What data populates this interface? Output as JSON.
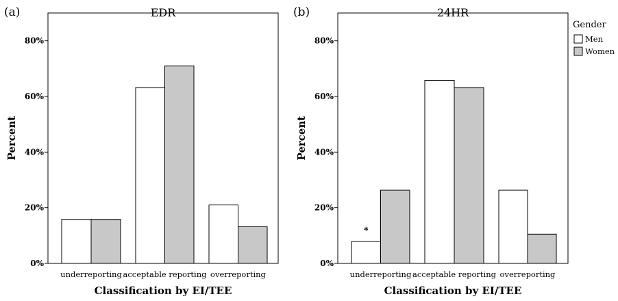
{
  "colors": {
    "men": "#ffffff",
    "women": "#c8c8c8",
    "stroke": "#000000"
  },
  "legend": {
    "title": "Gender",
    "entries": [
      "Men",
      "Women"
    ]
  },
  "chart_data": [
    {
      "panel_label": "(a)",
      "type": "bar",
      "title": "EDR",
      "xlabel": "Classification by EI/TEE",
      "ylabel": "Percent",
      "ylim": [
        0,
        90
      ],
      "yticks": [
        "0%",
        "20%",
        "40%",
        "60%",
        "80%"
      ],
      "categories": [
        "underreporting",
        "acceptable reporting",
        "overreporting"
      ],
      "series": [
        {
          "name": "Men",
          "values": [
            15.8,
            63.2,
            21.0
          ]
        },
        {
          "name": "Women",
          "values": [
            15.8,
            71.0,
            13.2
          ]
        }
      ],
      "grid": false,
      "legend": "none",
      "annotations": []
    },
    {
      "panel_label": "(b)",
      "type": "bar",
      "title": "24HR",
      "xlabel": "Classification by EI/TEE",
      "ylabel": "Percent",
      "ylim": [
        0,
        90
      ],
      "yticks": [
        "0%",
        "20%",
        "40%",
        "60%",
        "80%"
      ],
      "categories": [
        "underreporting",
        "acceptable reporting",
        "overreporting"
      ],
      "series": [
        {
          "name": "Men",
          "values": [
            7.9,
            65.8,
            26.3
          ]
        },
        {
          "name": "Women",
          "values": [
            26.3,
            63.2,
            10.5
          ]
        }
      ],
      "grid": false,
      "legend": "right",
      "annotations": [
        {
          "text": "*",
          "category": 0,
          "series": 0
        }
      ]
    }
  ]
}
